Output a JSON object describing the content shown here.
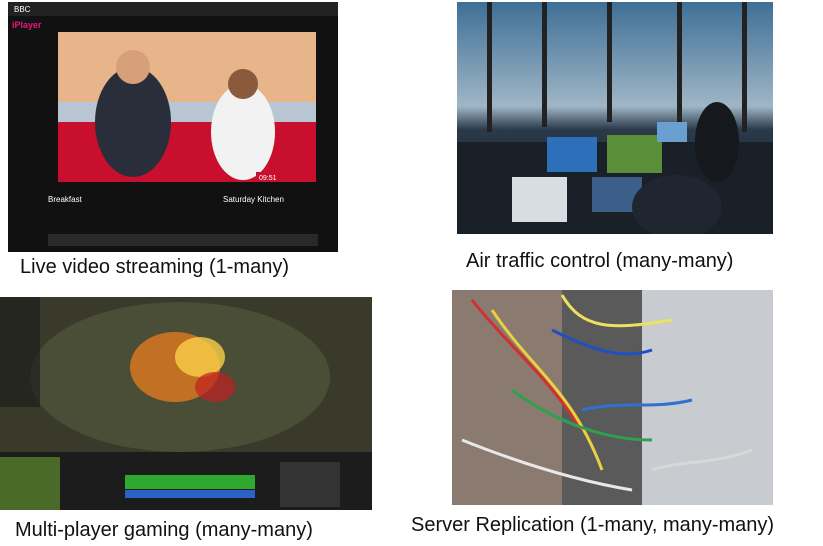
{
  "captions": [
    "Live video streaming (1-many)",
    "Air traffic control (many-many)",
    "Multi-player gaming (many-many)",
    "Server Replication (1-many, many-many)"
  ],
  "video": {
    "bbc": "BBC",
    "brand": "iPlayer",
    "clock": "09:51",
    "programmes": [
      "Breakfast",
      "Saturday Kitchen"
    ]
  }
}
